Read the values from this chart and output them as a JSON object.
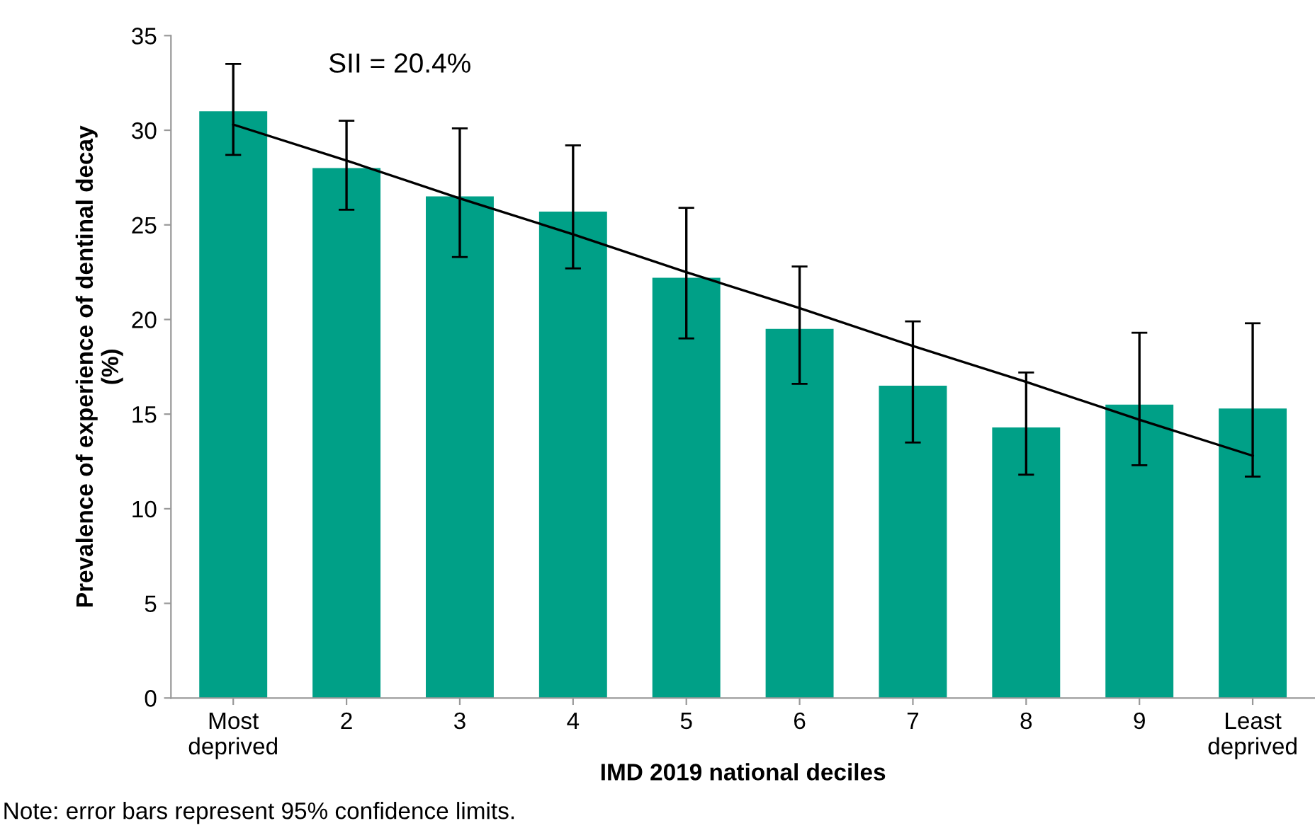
{
  "chart_data": {
    "type": "bar",
    "xlabel": "IMD 2019 national deciles",
    "ylabel": "Prevalence of experience of dentinal decay\n(%)",
    "categories": [
      "Most\ndeprived",
      "2",
      "3",
      "4",
      "5",
      "6",
      "7",
      "8",
      "9",
      "Least\ndeprived"
    ],
    "series": [
      {
        "color": "#00a087",
        "values": [
          31.0,
          28.0,
          26.5,
          25.7,
          22.2,
          19.5,
          16.5,
          14.3,
          15.5,
          15.3
        ],
        "errors": [
          [
            28.7,
            33.5
          ],
          [
            25.8,
            30.5
          ],
          [
            23.3,
            30.1
          ],
          [
            22.7,
            29.2
          ],
          [
            19.0,
            25.9
          ],
          [
            16.6,
            22.8
          ],
          [
            13.5,
            19.9
          ],
          [
            11.8,
            17.2
          ],
          [
            12.3,
            19.3
          ],
          [
            11.7,
            19.8
          ]
        ]
      },
      {
        "type": "line",
        "color": "#000000",
        "values": [
          30.3,
          28.4,
          26.4,
          24.5,
          22.5,
          20.6,
          18.6,
          16.7,
          14.7,
          12.8
        ]
      }
    ],
    "ylim": [
      0,
      35
    ],
    "yticks": [
      0,
      5,
      10,
      15,
      20,
      25,
      30,
      35
    ],
    "grid": false,
    "legend": false,
    "annotations": [
      "SII = 20.4%",
      "Note: error bars represent 95% confidence limits."
    ]
  }
}
